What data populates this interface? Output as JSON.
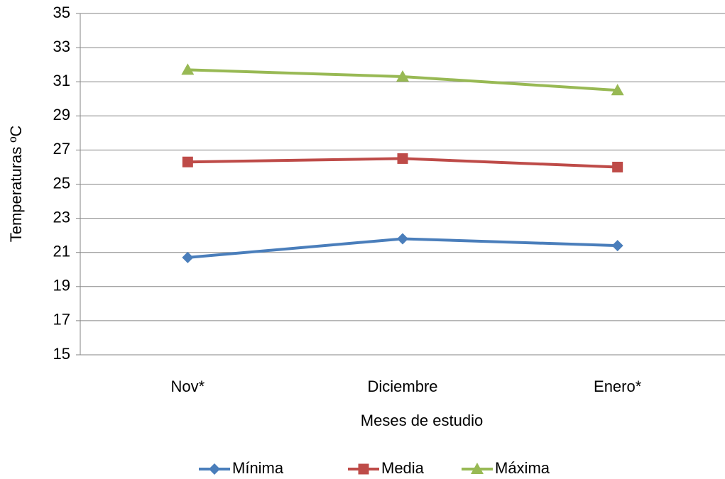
{
  "chart_data": {
    "type": "line",
    "categories": [
      "Nov*",
      "Diciembre",
      "Enero*"
    ],
    "series": [
      {
        "name": "Mínima",
        "color": "#4a7ebb",
        "marker": "diamond",
        "values": [
          20.7,
          21.8,
          21.4
        ]
      },
      {
        "name": "Media",
        "color": "#be4b48",
        "marker": "square",
        "values": [
          26.3,
          26.5,
          26.0
        ]
      },
      {
        "name": "Máxima",
        "color": "#98b954",
        "marker": "triangle",
        "values": [
          31.7,
          31.3,
          30.5
        ]
      }
    ],
    "x_label": "Meses de estudio",
    "y_label": "Temperaturas ºC",
    "ylim": [
      15,
      35
    ],
    "yticks": [
      15,
      17,
      19,
      21,
      23,
      25,
      27,
      29,
      31,
      33,
      35
    ],
    "grid": true,
    "legend": "bottom"
  }
}
